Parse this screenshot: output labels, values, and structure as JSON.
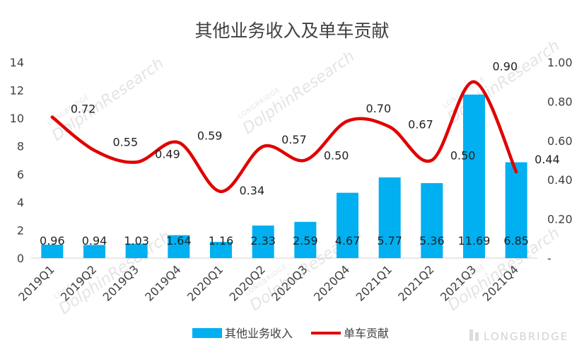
{
  "chart_data": {
    "type": "bar",
    "title": "其他业务收入及单车贡献",
    "categories": [
      "2019Q1",
      "2019Q2",
      "2019Q3",
      "2019Q4",
      "2020Q1",
      "2020Q2",
      "2020Q3",
      "2020Q4",
      "2021Q1",
      "2021Q2",
      "2021Q3",
      "2021Q4"
    ],
    "series": [
      {
        "name": "其他业务收入",
        "type": "bar",
        "axis": "left",
        "color": "#00b0f0",
        "values": [
          0.96,
          0.94,
          1.03,
          1.64,
          1.16,
          2.33,
          2.59,
          4.67,
          5.77,
          5.36,
          11.69,
          6.85
        ],
        "labels": [
          "0.96",
          "0.94",
          "1.03",
          "1.64",
          "1.16",
          "2.33",
          "2.59",
          "4.67",
          "5.77",
          "5.36",
          "11.69",
          "6.85"
        ]
      },
      {
        "name": "单车贡献",
        "type": "line",
        "axis": "right",
        "color": "#e00000",
        "values": [
          0.72,
          0.55,
          0.49,
          0.59,
          0.34,
          0.57,
          0.5,
          0.7,
          0.67,
          0.5,
          0.9,
          0.44
        ],
        "labels": [
          "0.72",
          "0.55",
          "0.49",
          "0.59",
          "0.34",
          "0.57",
          "0.50",
          "0.70",
          "0.67",
          "0.50",
          "0.90",
          "0.44"
        ]
      }
    ],
    "y_left": {
      "min": 0,
      "max": 14,
      "ticks": [
        "0",
        "2",
        "4",
        "6",
        "8",
        "10",
        "12",
        "14"
      ]
    },
    "y_right": {
      "min": 0,
      "max": 1.0,
      "ticks": [
        "-",
        "0.20",
        "0.40",
        "0.60",
        "0.80",
        "1.00"
      ]
    },
    "grid": false,
    "legend": "bottom"
  },
  "watermark": {
    "text": "DolphinResearch",
    "sub": "LONGBRIDGE",
    "brand": "LONGBRIDGE"
  }
}
